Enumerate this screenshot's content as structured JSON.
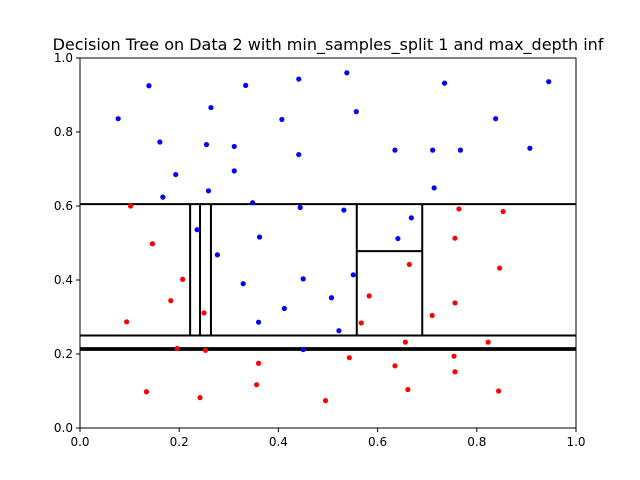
{
  "chart_data": {
    "type": "scatter",
    "title": "Decision Tree on Data 2 with min_samples_split 1 and max_depth inf",
    "xlabel": "",
    "ylabel": "",
    "xlim": [
      0.0,
      1.0
    ],
    "ylim": [
      0.0,
      1.0
    ],
    "xticks": [
      "0.0",
      "0.2",
      "0.4",
      "0.6",
      "0.8",
      "1.0"
    ],
    "yticks": [
      "0.0",
      "0.2",
      "0.4",
      "0.6",
      "0.8",
      "1.0"
    ],
    "grid": false,
    "series": [
      {
        "color": "#0000ff",
        "points": [
          [
            0.077,
            0.836
          ],
          [
            0.139,
            0.925
          ],
          [
            0.161,
            0.773
          ],
          [
            0.167,
            0.624
          ],
          [
            0.193,
            0.685
          ],
          [
            0.255,
            0.766
          ],
          [
            0.259,
            0.641
          ],
          [
            0.264,
            0.866
          ],
          [
            0.311,
            0.761
          ],
          [
            0.311,
            0.695
          ],
          [
            0.334,
            0.926
          ],
          [
            0.407,
            0.834
          ],
          [
            0.441,
            0.943
          ],
          [
            0.441,
            0.739
          ],
          [
            0.538,
            0.96
          ],
          [
            0.557,
            0.855
          ],
          [
            0.635,
            0.751
          ],
          [
            0.711,
            0.751
          ],
          [
            0.714,
            0.649
          ],
          [
            0.735,
            0.932
          ],
          [
            0.767,
            0.751
          ],
          [
            0.838,
            0.836
          ],
          [
            0.907,
            0.756
          ],
          [
            0.945,
            0.936
          ],
          [
            0.348,
            0.609
          ],
          [
            0.444,
            0.596
          ],
          [
            0.532,
            0.589
          ],
          [
            0.668,
            0.568
          ],
          [
            0.236,
            0.536
          ],
          [
            0.362,
            0.516
          ],
          [
            0.641,
            0.512
          ],
          [
            0.277,
            0.468
          ],
          [
            0.551,
            0.414
          ],
          [
            0.45,
            0.403
          ],
          [
            0.329,
            0.39
          ],
          [
            0.507,
            0.352
          ],
          [
            0.412,
            0.323
          ],
          [
            0.36,
            0.286
          ],
          [
            0.522,
            0.263
          ],
          [
            0.45,
            0.212
          ]
        ]
      },
      {
        "color": "#ff0000",
        "points": [
          [
            0.102,
            0.6
          ],
          [
            0.764,
            0.592
          ],
          [
            0.853,
            0.585
          ],
          [
            0.146,
            0.498
          ],
          [
            0.756,
            0.513
          ],
          [
            0.664,
            0.442
          ],
          [
            0.207,
            0.402
          ],
          [
            0.846,
            0.432
          ],
          [
            0.183,
            0.344
          ],
          [
            0.583,
            0.357
          ],
          [
            0.756,
            0.338
          ],
          [
            0.25,
            0.311
          ],
          [
            0.71,
            0.304
          ],
          [
            0.094,
            0.287
          ],
          [
            0.567,
            0.284
          ],
          [
            0.196,
            0.215
          ],
          [
            0.253,
            0.21
          ],
          [
            0.656,
            0.232
          ],
          [
            0.823,
            0.232
          ],
          [
            0.543,
            0.19
          ],
          [
            0.754,
            0.194
          ],
          [
            0.36,
            0.175
          ],
          [
            0.635,
            0.168
          ],
          [
            0.756,
            0.152
          ],
          [
            0.356,
            0.117
          ],
          [
            0.661,
            0.104
          ],
          [
            0.134,
            0.098
          ],
          [
            0.844,
            0.1
          ],
          [
            0.242,
            0.082
          ],
          [
            0.495,
            0.074
          ]
        ]
      }
    ],
    "boundaries": [
      {
        "x": [
          0.0,
          1.0
        ],
        "y": [
          0.605,
          0.605
        ]
      },
      {
        "x": [
          0.0,
          1.0
        ],
        "y": [
          0.25,
          0.25
        ]
      },
      {
        "x": [
          0.0,
          1.0
        ],
        "y": [
          0.216,
          0.216
        ]
      },
      {
        "x": [
          0.0,
          1.0
        ],
        "y": [
          0.211,
          0.211
        ]
      },
      {
        "x": [
          0.222,
          0.222
        ],
        "y": [
          0.25,
          0.605
        ]
      },
      {
        "x": [
          0.242,
          0.242
        ],
        "y": [
          0.25,
          0.605
        ]
      },
      {
        "x": [
          0.264,
          0.264
        ],
        "y": [
          0.25,
          0.605
        ]
      },
      {
        "x": [
          0.558,
          0.558
        ],
        "y": [
          0.25,
          0.605
        ]
      },
      {
        "x": [
          0.69,
          0.69
        ],
        "y": [
          0.25,
          0.605
        ]
      },
      {
        "x": [
          0.558,
          0.69
        ],
        "y": [
          0.478,
          0.478
        ]
      }
    ]
  }
}
